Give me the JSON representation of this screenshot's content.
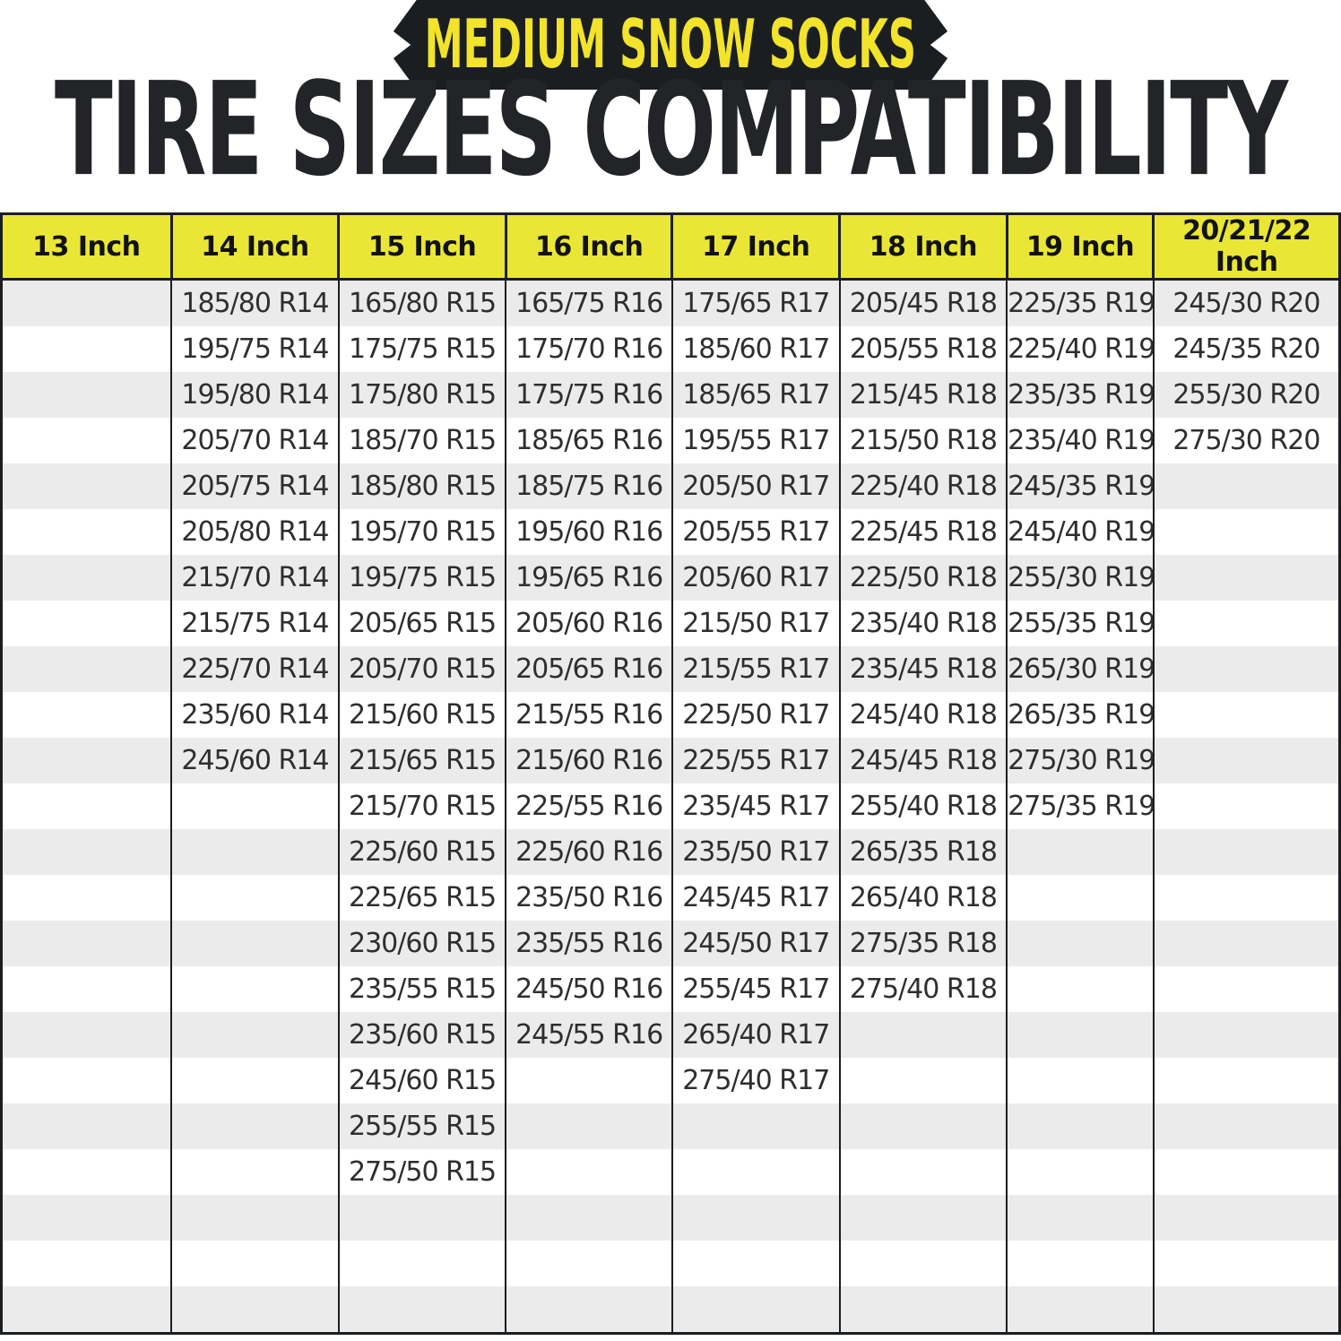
{
  "colors": {
    "ink": "#1b1e21",
    "banner_text": "#f2e32b",
    "header_bg": "#e9e636",
    "stripe": "#ebebeb",
    "cell_text": "#2e2e2e",
    "title_text": "#222428",
    "page_bg": "#ffffff"
  },
  "chart_data": {
    "type": "table",
    "banner": "MEDIUM SNOW SOCKS",
    "title": "TIRE SIZES COMPATIBILITY",
    "row_count": 23,
    "layout_hints": {
      "header_fill": "yellow",
      "row_striping": "alternating gray/white starting gray",
      "gridlines": "vertical column dividers only"
    },
    "columns": [
      {
        "id": "13-inch",
        "label": "13 Inch",
        "tire_sizes": []
      },
      {
        "id": "14-inch",
        "label": "14 Inch",
        "tire_sizes": [
          "185/80 R14",
          "195/75 R14",
          "195/80 R14",
          "205/70 R14",
          "205/75 R14",
          "205/80 R14",
          "215/70 R14",
          "215/75 R14",
          "225/70 R14",
          "235/60 R14",
          "245/60 R14"
        ]
      },
      {
        "id": "15-inch",
        "label": "15 Inch",
        "tire_sizes": [
          "165/80 R15",
          "175/75 R15",
          "175/80 R15",
          "185/70 R15",
          "185/80 R15",
          "195/70 R15",
          "195/75 R15",
          "205/65 R15",
          "205/70 R15",
          "215/60 R15",
          "215/65 R15",
          "215/70 R15",
          "225/60 R15",
          "225/65 R15",
          "230/60 R15",
          "235/55 R15",
          "235/60 R15",
          "245/60 R15",
          "255/55 R15",
          "275/50 R15"
        ]
      },
      {
        "id": "16-inch",
        "label": "16 Inch",
        "tire_sizes": [
          "165/75 R16",
          "175/70 R16",
          "175/75 R16",
          "185/65 R16",
          "185/75 R16",
          "195/60 R16",
          "195/65 R16",
          "205/60 R16",
          "205/65 R16",
          "215/55 R16",
          "215/60 R16",
          "225/55 R16",
          "225/60 R16",
          "235/50 R16",
          "235/55 R16",
          "245/50 R16",
          "245/55 R16"
        ]
      },
      {
        "id": "17-inch",
        "label": "17 Inch",
        "tire_sizes": [
          "175/65 R17",
          "185/60 R17",
          "185/65 R17",
          "195/55 R17",
          "205/50 R17",
          "205/55 R17",
          "205/60 R17",
          "215/50 R17",
          "215/55 R17",
          "225/50 R17",
          "225/55 R17",
          "235/45 R17",
          "235/50 R17",
          "245/45 R17",
          "245/50 R17",
          "255/45 R17",
          "265/40 R17",
          "275/40 R17"
        ]
      },
      {
        "id": "18-inch",
        "label": "18 Inch",
        "tire_sizes": [
          "205/45 R18",
          "205/55 R18",
          "215/45 R18",
          "215/50 R18",
          "225/40 R18",
          "225/45 R18",
          "225/50 R18",
          "235/40 R18",
          "235/45 R18",
          "245/40 R18",
          "245/45 R18",
          "255/40 R18",
          "265/35 R18",
          "265/40 R18",
          "275/35 R18",
          "275/40 R18"
        ]
      },
      {
        "id": "19-inch",
        "label": "19 Inch",
        "tire_sizes": [
          "225/35 R19",
          "225/40 R19",
          "235/35 R19",
          "235/40 R19",
          "245/35 R19",
          "245/40 R19",
          "255/30 R19",
          "255/35 R19",
          "265/30 R19",
          "265/35 R19",
          "275/30 R19",
          "275/35 R19"
        ]
      },
      {
        "id": "20-21-22-inch",
        "label": "20/21/22 Inch",
        "tire_sizes": [
          "245/30 R20",
          "245/35 R20",
          "255/30 R20",
          "275/30 R20"
        ]
      }
    ]
  }
}
